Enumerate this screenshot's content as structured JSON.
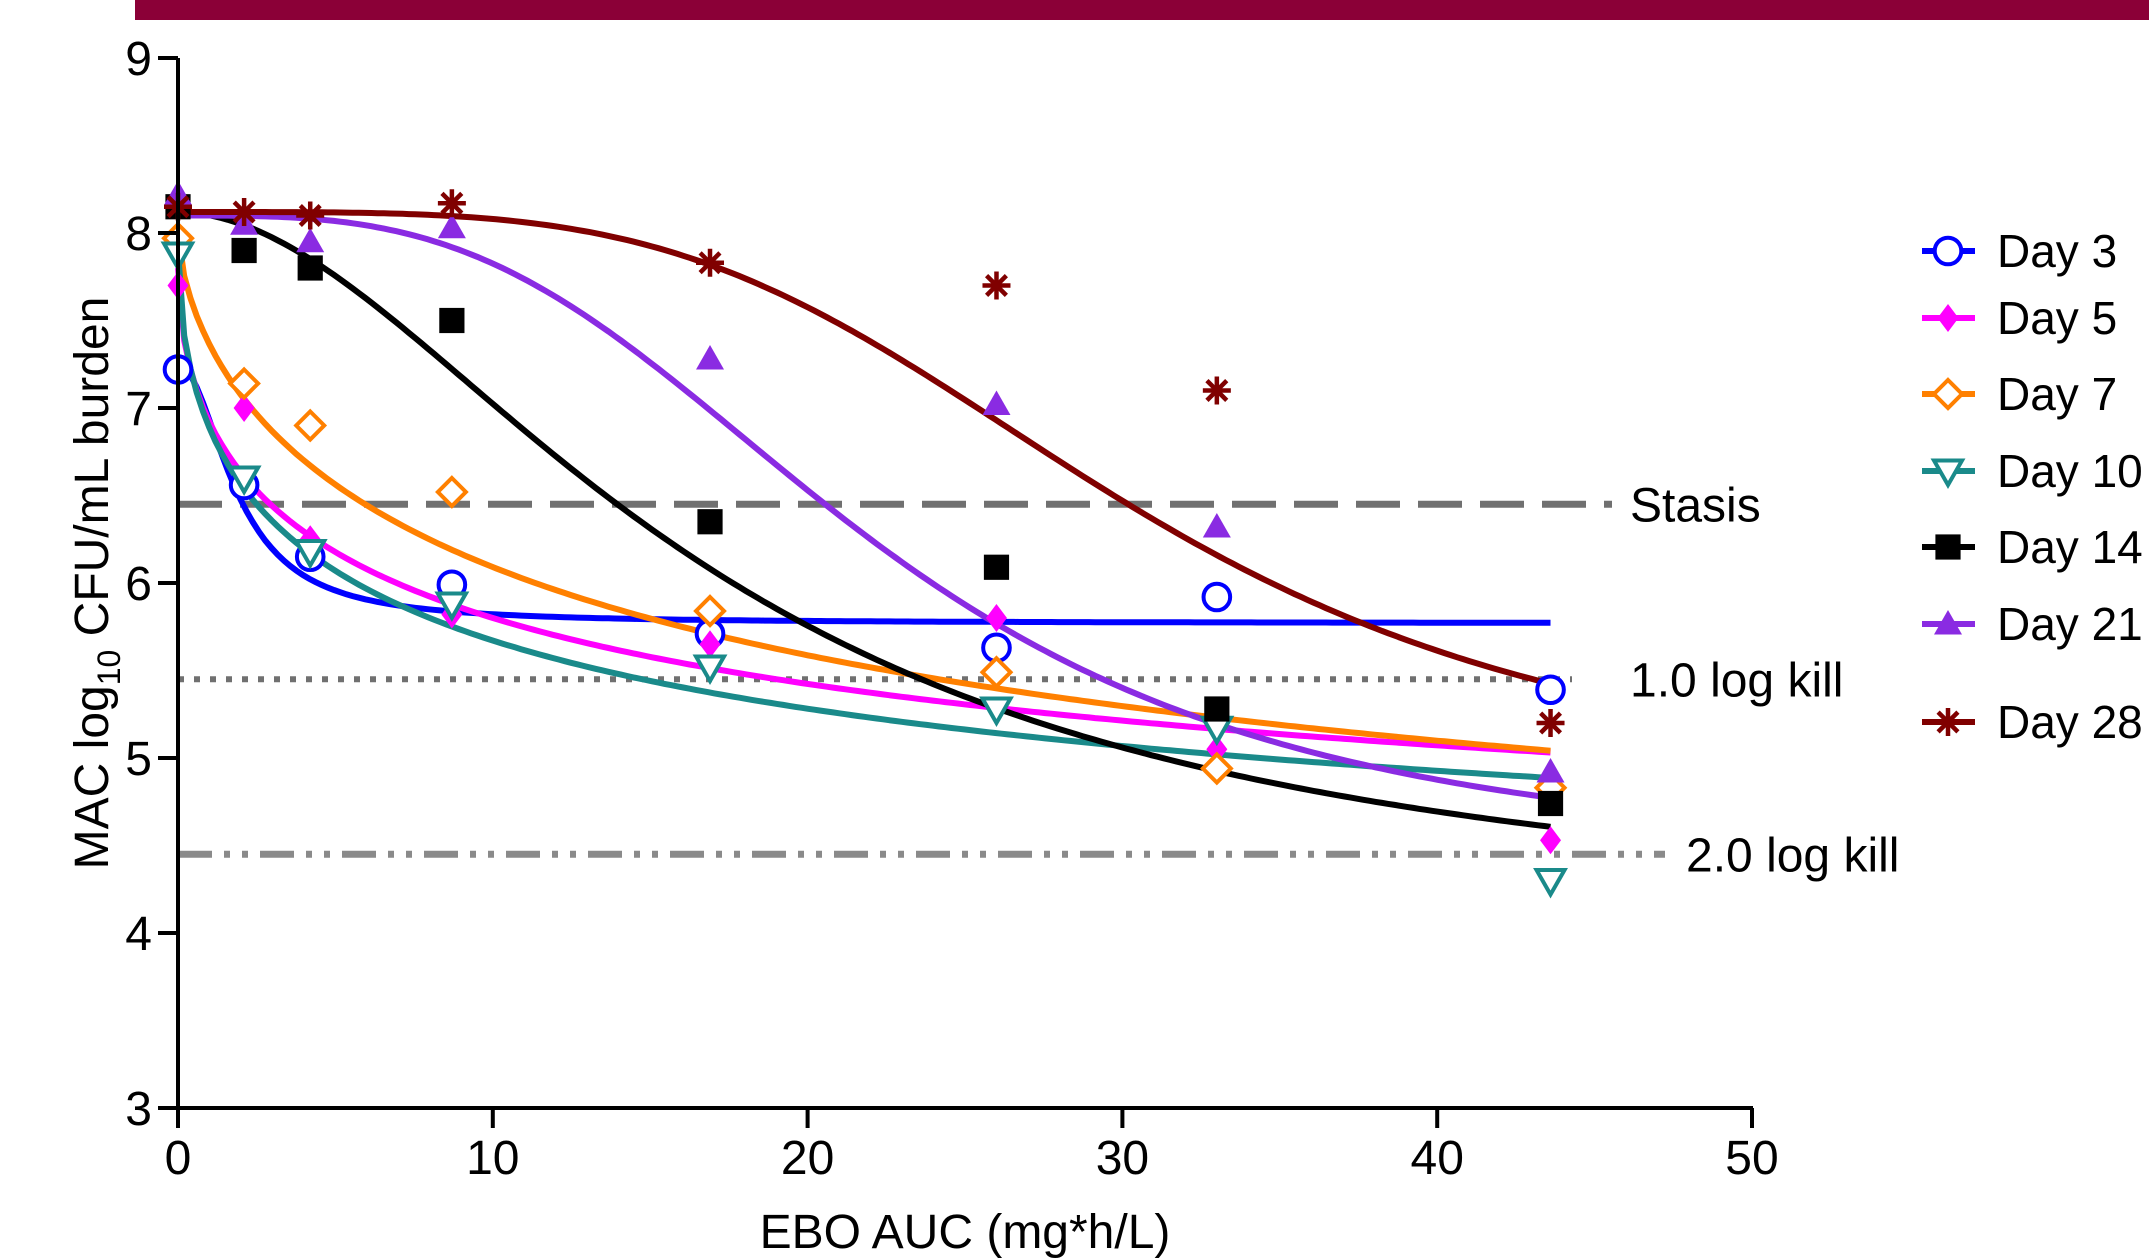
{
  "chart_data": {
    "type": "scatter",
    "xlabel": "EBO AUC (mg*h/L)",
    "ylabel_parts": [
      "MAC log",
      "10",
      " CFU/mL burden"
    ],
    "xlim": [
      0,
      50
    ],
    "ylim": [
      3,
      9
    ],
    "x_ticks": [
      0,
      10,
      20,
      30,
      40,
      50
    ],
    "y_ticks": [
      3,
      4,
      5,
      6,
      7,
      8,
      9
    ],
    "legend_position": "right",
    "reference_lines": [
      {
        "label": "Stasis",
        "y": 6.45,
        "style": "dashed",
        "color": "#707070"
      },
      {
        "label": "1.0 log kill",
        "y": 5.45,
        "style": "dotted",
        "color": "#707070"
      },
      {
        "label": "2.0 log kill",
        "y": 4.45,
        "style": "dashdotdot",
        "color": "#8a8a8a"
      }
    ],
    "series": [
      {
        "name": "Day 3",
        "color": "#0000ff",
        "marker": "circle-open",
        "x": [
          0,
          2.1,
          4.2,
          8.7,
          16.9,
          26,
          33,
          43.6
        ],
        "y": [
          7.22,
          6.56,
          6.15,
          5.99,
          5.71,
          5.63,
          5.92,
          5.39
        ],
        "fit": {
          "e0": 7.25,
          "emax": 1.48,
          "ec50": 1.9,
          "h": 2.0,
          "xmax": 43.6
        }
      },
      {
        "name": "Day 5",
        "color": "#ff00ff",
        "marker": "diamond-filled",
        "x": [
          0,
          2.1,
          4.2,
          8.7,
          16.9,
          26,
          33,
          43.6
        ],
        "y": [
          7.7,
          7.0,
          6.25,
          5.82,
          5.65,
          5.8,
          5.05,
          4.53
        ],
        "fit": {
          "e0": 7.8,
          "emax": 4.0,
          "ec50": 10.0,
          "h": 0.55,
          "xmax": 43.6
        }
      },
      {
        "name": "Day 7",
        "color": "#ff8000",
        "marker": "diamond-open",
        "x": [
          0,
          2.1,
          4.2,
          8.7,
          16.9,
          26,
          33,
          43.6
        ],
        "y": [
          7.97,
          7.14,
          6.9,
          6.52,
          5.84,
          5.49,
          4.94,
          4.83
        ],
        "fit": {
          "e0": 8.0,
          "emax": 4.5,
          "ec50": 16.0,
          "h": 0.65,
          "xmax": 43.6
        }
      },
      {
        "name": "Day 10",
        "color": "#1a8a8a",
        "marker": "triangle-down-open",
        "x": [
          0,
          2.1,
          4.2,
          8.7,
          16.9,
          26,
          33,
          43.6
        ],
        "y": [
          7.88,
          6.6,
          6.18,
          5.88,
          5.52,
          5.28,
          5.17,
          4.3
        ],
        "fit": {
          "e0": 7.9,
          "emax": 4.2,
          "ec50": 8.0,
          "h": 0.55,
          "xmax": 43.6
        }
      },
      {
        "name": "Day 14",
        "color": "#000000",
        "marker": "square-filled",
        "x": [
          0,
          2.1,
          4.2,
          8.7,
          16.9,
          26,
          33,
          43.6
        ],
        "y": [
          8.15,
          7.9,
          7.8,
          7.5,
          6.35,
          6.09,
          5.28,
          4.74
        ],
        "fit": {
          "e0": 8.12,
          "emax": 4.1,
          "ec50": 17.0,
          "h": 1.9,
          "xmax": 43.6
        }
      },
      {
        "name": "Day 21",
        "color": "#8a2be2",
        "marker": "triangle-up-filled",
        "x": [
          0,
          2.1,
          4.2,
          8.7,
          16.9,
          26,
          33,
          43.6
        ],
        "y": [
          8.22,
          8.05,
          7.95,
          8.03,
          7.28,
          7.02,
          6.32,
          4.92
        ],
        "fit": {
          "e0": 8.1,
          "emax": 3.7,
          "ec50": 22.0,
          "h": 3.2,
          "xmax": 43.6
        }
      },
      {
        "name": "Day 28",
        "color": "#800000",
        "marker": "asterisk",
        "x": [
          0,
          2.1,
          4.2,
          8.7,
          16.9,
          26,
          33,
          43.6
        ],
        "y": [
          8.15,
          8.12,
          8.1,
          8.17,
          7.83,
          7.7,
          7.1,
          5.2
        ],
        "fit": {
          "e0": 8.12,
          "emax": 3.3,
          "ec50": 30.0,
          "h": 4.0,
          "xmax": 43.6
        }
      }
    ]
  }
}
